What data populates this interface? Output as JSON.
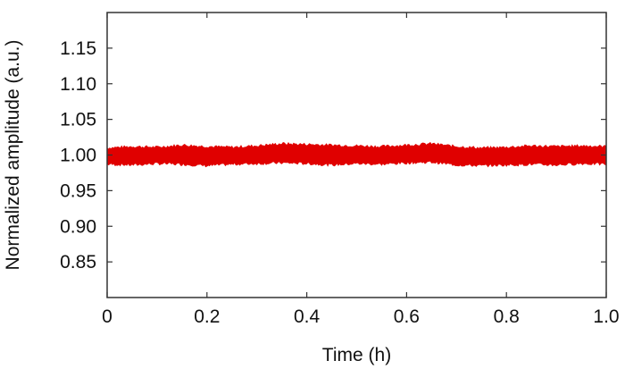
{
  "chart_data": {
    "type": "line",
    "xlabel": "Time (h)",
    "ylabel": "Normalized amplitude (a.u.)",
    "xlim": [
      0,
      1.0
    ],
    "ylim": [
      0.8,
      1.2
    ],
    "x_ticks": [
      "0",
      "0.2",
      "0.4",
      "0.6",
      "0.8",
      "1.0"
    ],
    "y_ticks": [
      "0.85",
      "0.90",
      "0.95",
      "1.00",
      "1.05",
      "1.10",
      "1.15"
    ],
    "grid": false,
    "legend": "none",
    "series": [
      {
        "color": "#e00000",
        "band": {
          "x": [
            0.0,
            0.05,
            0.1,
            0.15,
            0.2,
            0.25,
            0.3,
            0.35,
            0.4,
            0.45,
            0.5,
            0.55,
            0.6,
            0.65,
            0.7,
            0.75,
            0.8,
            0.85,
            0.9,
            0.95,
            1.0
          ],
          "upper": [
            1.01,
            1.012,
            1.011,
            1.014,
            1.012,
            1.011,
            1.013,
            1.016,
            1.015,
            1.014,
            1.013,
            1.012,
            1.014,
            1.016,
            1.012,
            1.01,
            1.011,
            1.013,
            1.012,
            1.013,
            1.012
          ],
          "lower": [
            0.987,
            0.986,
            0.988,
            0.987,
            0.985,
            0.987,
            0.988,
            0.989,
            0.988,
            0.986,
            0.988,
            0.987,
            0.989,
            0.99,
            0.986,
            0.985,
            0.986,
            0.987,
            0.986,
            0.988,
            0.987
          ],
          "mean": [
            0.998,
            0.999,
            0.999,
            1.0,
            0.998,
            0.999,
            1.0,
            1.003,
            1.001,
            1.0,
            1.0,
            0.999,
            1.001,
            1.003,
            0.999,
            0.997,
            0.998,
            1.0,
            0.999,
            1.0,
            0.999
          ]
        }
      }
    ]
  }
}
